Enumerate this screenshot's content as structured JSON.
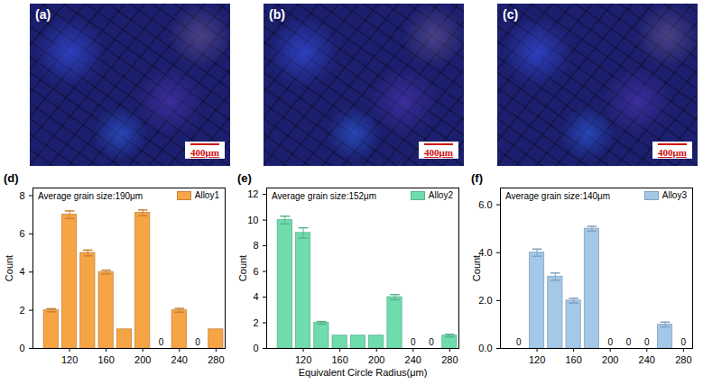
{
  "images": [
    {
      "label": "(a)",
      "scale_bar": "400μm"
    },
    {
      "label": "(b)",
      "scale_bar": "400μm"
    },
    {
      "label": "(c)",
      "scale_bar": "400μm"
    }
  ],
  "chart_data": [
    {
      "type": "bar",
      "panel_label": "(d)",
      "annotation": "Average grain size:190μm",
      "ylabel": "Count",
      "x": [
        100,
        120,
        140,
        160,
        180,
        200,
        220,
        240,
        260,
        280
      ],
      "series": [
        {
          "name": "Alloy1",
          "color": "#f7a445",
          "values": [
            2,
            7,
            5,
            4,
            1,
            7.1,
            0,
            2,
            0,
            1
          ],
          "errors": [
            0.08,
            0.2,
            0.15,
            0.1,
            0,
            0.15,
            0,
            0.1,
            0,
            0
          ],
          "value_labels": [
            null,
            null,
            null,
            null,
            null,
            null,
            "0",
            null,
            "0",
            null
          ]
        }
      ],
      "xlim": [
        80,
        290
      ],
      "xticks": [
        120,
        160,
        200,
        240,
        280
      ],
      "ylim": [
        0,
        8.4
      ],
      "yticks": [
        0,
        2,
        4,
        6,
        8
      ],
      "grid": false,
      "legend": "top-right"
    },
    {
      "type": "bar",
      "panel_label": "(e)",
      "annotation": "Average grain size:152μm",
      "ylabel": "Count",
      "xlabel": "Equivalent Circle Radius(μm)",
      "x": [
        100,
        120,
        140,
        160,
        180,
        200,
        220,
        240,
        260,
        280
      ],
      "series": [
        {
          "name": "Alloy2",
          "color": "#6fdcae",
          "values": [
            10,
            9,
            2,
            1,
            1,
            1,
            4,
            0,
            0,
            1
          ],
          "errors": [
            0.3,
            0.4,
            0.1,
            0,
            0,
            0,
            0.2,
            0,
            0,
            0.1
          ],
          "value_labels": [
            null,
            null,
            null,
            null,
            null,
            null,
            null,
            "0",
            "0",
            null
          ]
        }
      ],
      "xlim": [
        80,
        290
      ],
      "xticks": [
        120,
        160,
        200,
        240,
        280
      ],
      "ylim": [
        0,
        12.5
      ],
      "yticks": [
        0,
        2,
        4,
        6,
        8,
        10,
        12
      ],
      "grid": false,
      "legend": "top-right"
    },
    {
      "type": "bar",
      "panel_label": "(f)",
      "annotation": "Average grain size:140μm",
      "ylabel": "Count",
      "x": [
        100,
        120,
        140,
        160,
        180,
        200,
        220,
        240,
        260,
        280
      ],
      "series": [
        {
          "name": "Alloy3",
          "color": "#a3c8e8",
          "values": [
            0,
            4,
            3,
            2,
            5,
            0,
            0,
            0,
            1,
            0
          ],
          "errors": [
            0,
            0.15,
            0.15,
            0.1,
            0.1,
            0,
            0,
            0,
            0.1,
            0
          ],
          "value_labels": [
            "0",
            null,
            null,
            null,
            null,
            "0",
            "0",
            "0",
            null,
            "0"
          ]
        }
      ],
      "xlim": [
        80,
        290
      ],
      "xticks": [
        120,
        160,
        200,
        240,
        280
      ],
      "ylim": [
        0,
        6.7
      ],
      "yticks": [
        0,
        2,
        4,
        6
      ],
      "grid": false,
      "legend": "top-right"
    }
  ]
}
